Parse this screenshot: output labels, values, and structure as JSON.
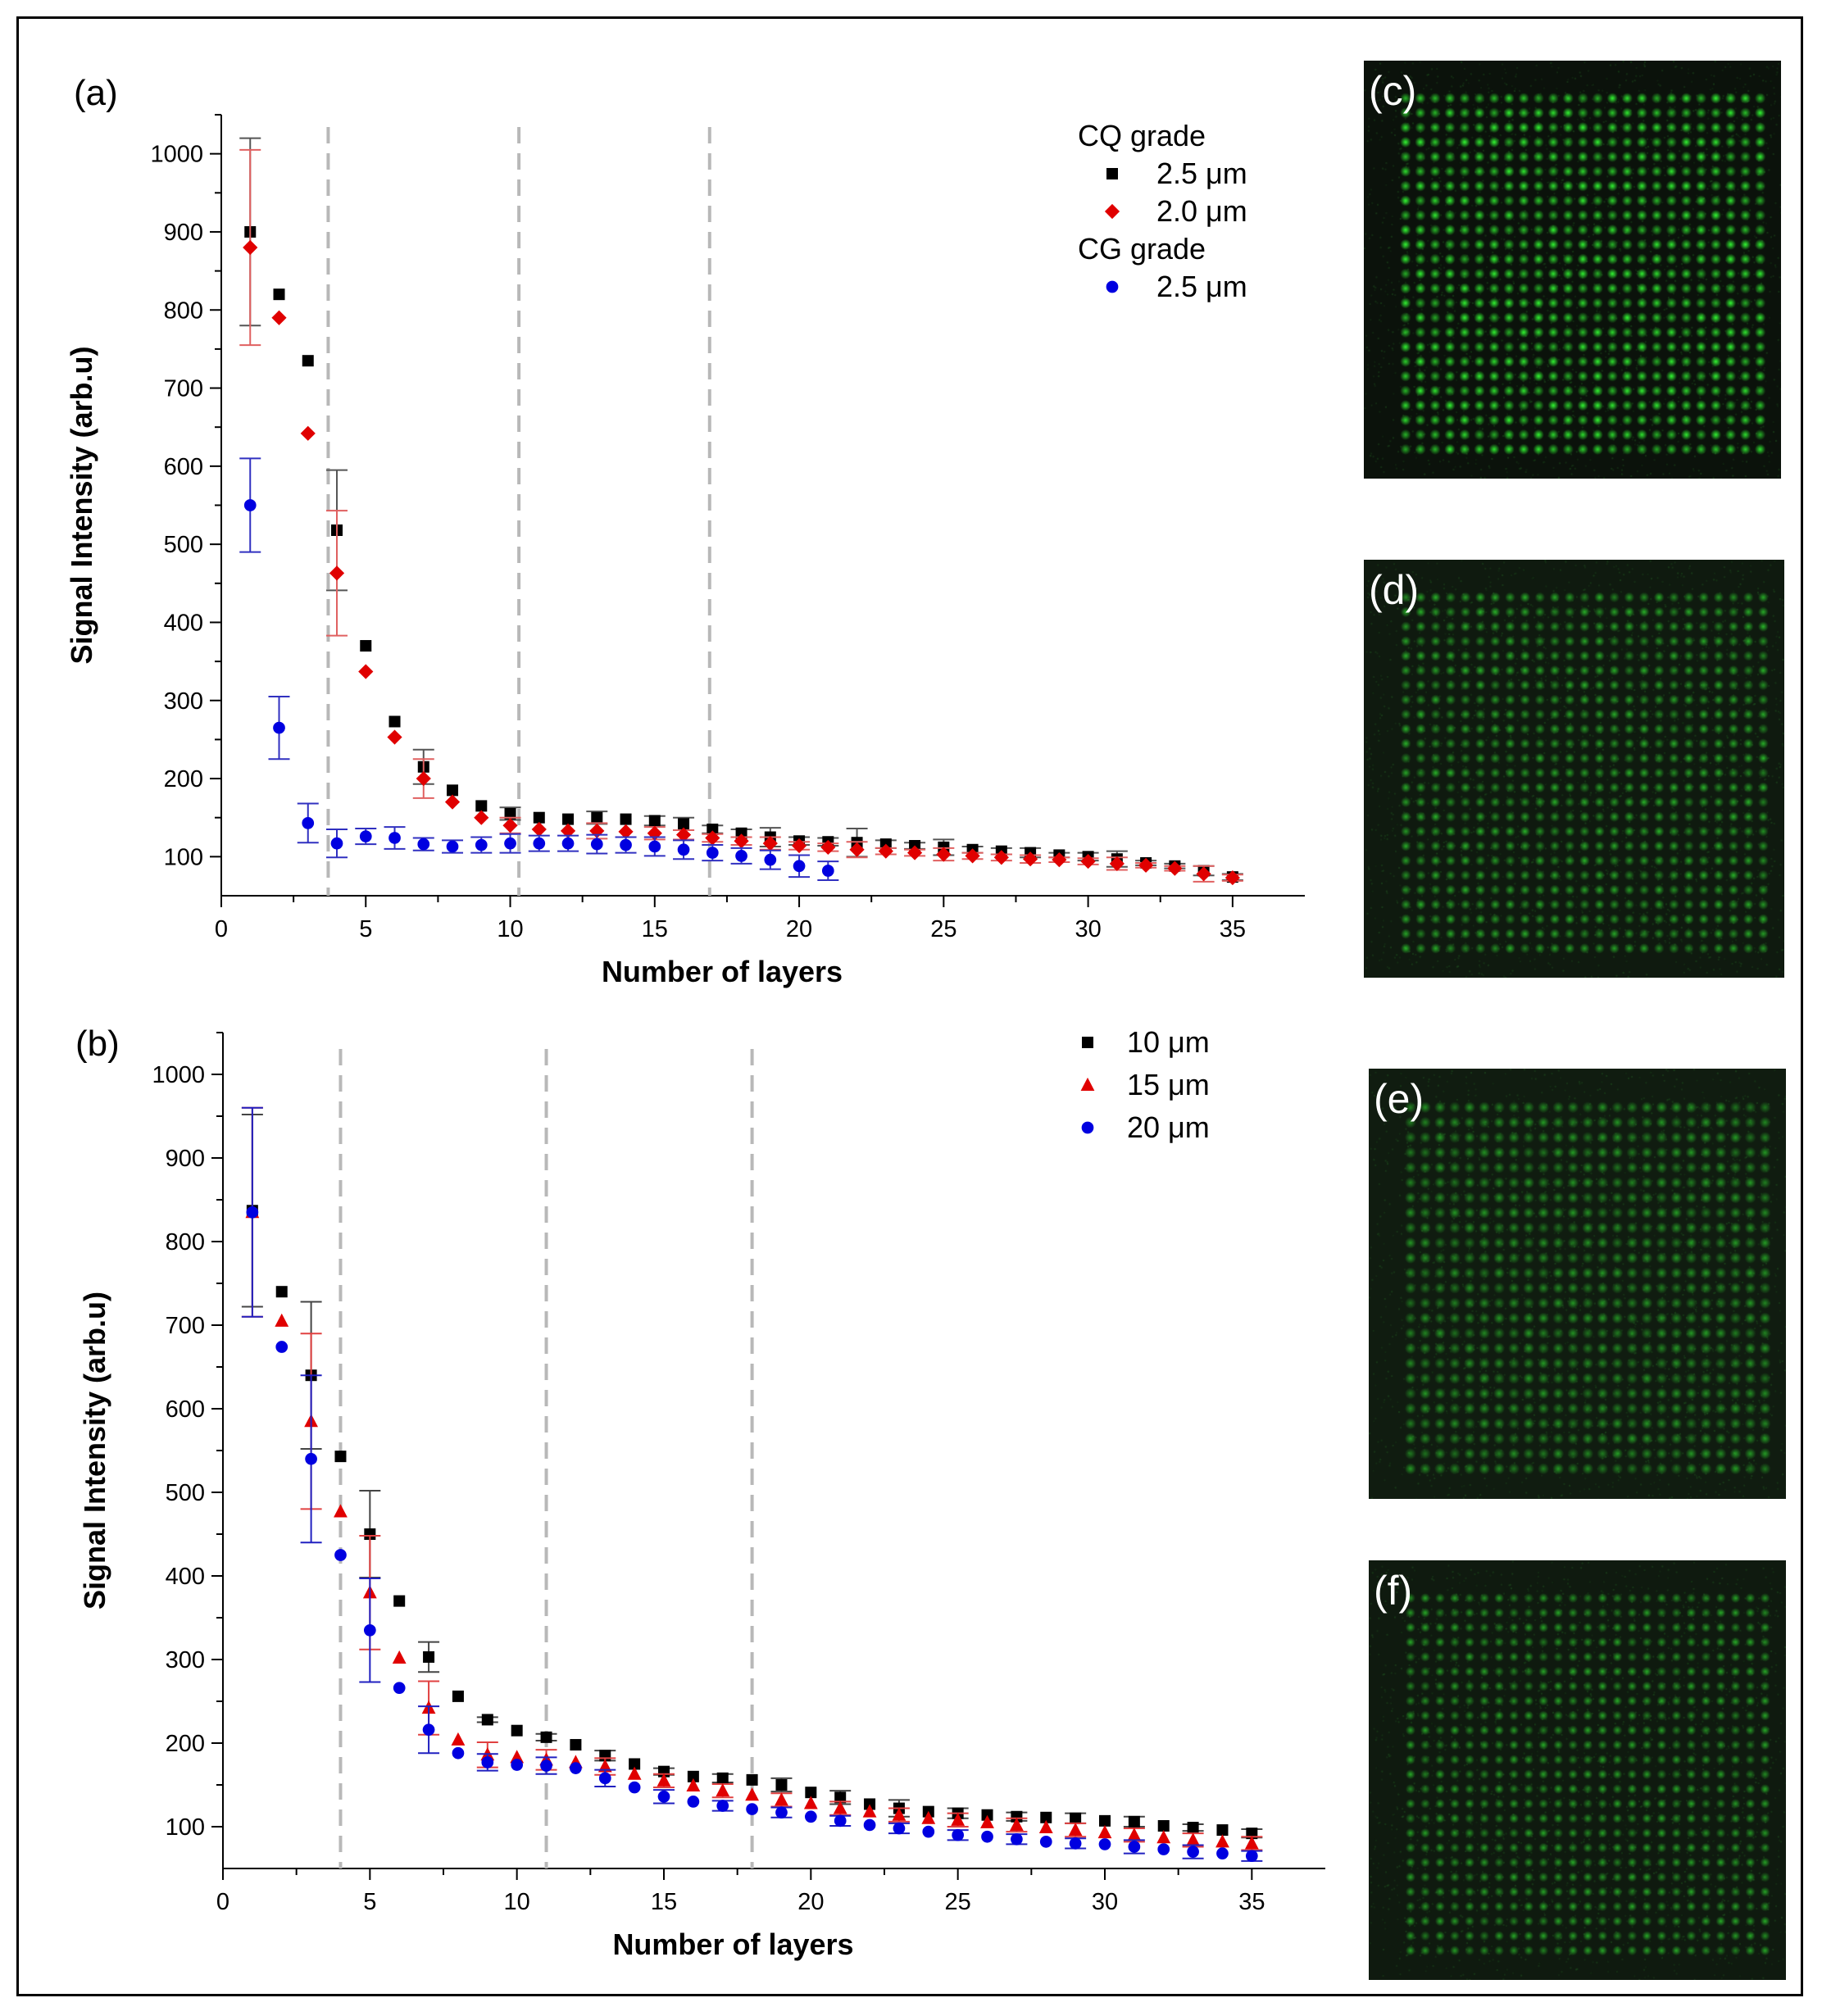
{
  "chart_data": [
    {
      "type": "scatter",
      "panel_label": "(a)",
      "xlabel": "Number of layers",
      "ylabel": "Signal Intensity (arb.u)",
      "xlim": [
        0,
        37.5
      ],
      "ylim": [
        50,
        1050
      ],
      "xticks": [
        0,
        5,
        10,
        15,
        20,
        25,
        30,
        35
      ],
      "yticks": [
        100,
        200,
        300,
        400,
        500,
        600,
        700,
        800,
        900,
        1000
      ],
      "vlines": [
        3.7,
        10.3,
        16.9
      ],
      "legend": [
        {
          "kind": "header",
          "text": "CQ grade"
        },
        {
          "kind": "series",
          "series": 0,
          "text": "2.5 μm"
        },
        {
          "kind": "series",
          "series": 1,
          "text": "2.0 μm"
        },
        {
          "kind": "header",
          "text": "CG grade"
        },
        {
          "kind": "series",
          "series": 2,
          "text": "2.5 μm"
        }
      ],
      "series": [
        {
          "name": "CQ 2.5 μm",
          "marker": "square",
          "color": "#000000",
          "errcolor": "#555555",
          "x": [
            1,
            2,
            3,
            4,
            5,
            6,
            7,
            8,
            9,
            10,
            11,
            12,
            13,
            14,
            15,
            16,
            17,
            18,
            19,
            20,
            21,
            22,
            23,
            24,
            25,
            26,
            27,
            28,
            29,
            30,
            31,
            32,
            33,
            34,
            35
          ],
          "y": [
            900,
            820,
            735,
            518,
            370,
            273,
            215,
            185,
            165,
            155,
            150,
            148,
            150,
            148,
            146,
            142,
            135,
            130,
            125,
            120,
            119,
            118,
            116,
            114,
            112,
            109,
            107,
            105,
            102,
            100,
            97,
            92,
            88,
            82,
            74
          ],
          "err": [
            120,
            0,
            0,
            77,
            0,
            0,
            22,
            0,
            0,
            8,
            0,
            0,
            8,
            0,
            6,
            8,
            5,
            5,
            12,
            5,
            5,
            18,
            5,
            4,
            10,
            4,
            4,
            6,
            3,
            5,
            10,
            3,
            3,
            6,
            4
          ]
        },
        {
          "name": "CQ 2.0 μm",
          "marker": "diamond",
          "color": "#e00000",
          "errcolor": "#e06060",
          "x": [
            1,
            2,
            3,
            4,
            5,
            6,
            7,
            8,
            9,
            10,
            11,
            12,
            13,
            14,
            15,
            16,
            17,
            18,
            19,
            20,
            21,
            22,
            23,
            24,
            25,
            26,
            27,
            28,
            29,
            30,
            31,
            32,
            33,
            34,
            35
          ],
          "y": [
            880,
            790,
            642,
            463,
            337,
            253,
            200,
            170,
            150,
            140,
            135,
            133,
            133,
            132,
            130,
            128,
            124,
            120,
            117,
            114,
            112,
            109,
            107,
            105,
            103,
            101,
            99,
            97,
            96,
            94,
            91,
            89,
            85,
            78,
            73
          ],
          "err": [
            125,
            0,
            0,
            80,
            0,
            0,
            25,
            0,
            0,
            10,
            0,
            0,
            10,
            0,
            8,
            6,
            5,
            5,
            8,
            5,
            5,
            10,
            4,
            4,
            8,
            4,
            4,
            5,
            3,
            4,
            8,
            3,
            3,
            10,
            4
          ]
        },
        {
          "name": "CG 2.5 μm",
          "marker": "circle",
          "color": "#0000e0",
          "errcolor": "#3030c0",
          "x": [
            1,
            2,
            3,
            4,
            5,
            6,
            7,
            8,
            9,
            10,
            11,
            12,
            13,
            14,
            15,
            16,
            17,
            18,
            19,
            20,
            21
          ],
          "y": [
            550,
            265,
            143,
            117,
            126,
            124,
            116,
            113,
            115,
            117,
            117,
            117,
            116,
            115,
            113,
            109,
            105,
            101,
            96,
            88,
            82
          ],
          "err": [
            60,
            40,
            25,
            18,
            10,
            14,
            8,
            8,
            10,
            12,
            10,
            10,
            12,
            10,
            12,
            12,
            10,
            10,
            12,
            14,
            12
          ]
        }
      ]
    },
    {
      "type": "scatter",
      "panel_label": "(b)",
      "xlabel": "Number of layers",
      "ylabel": "Signal Intensity (arb.u)",
      "xlim": [
        0,
        37.5
      ],
      "ylim": [
        50,
        1050
      ],
      "xticks": [
        0,
        5,
        10,
        15,
        20,
        25,
        30,
        35
      ],
      "yticks": [
        100,
        200,
        300,
        400,
        500,
        600,
        700,
        800,
        900,
        1000
      ],
      "vlines": [
        4,
        11,
        18
      ],
      "legend": [
        {
          "kind": "series",
          "series": 0,
          "text": "10 μm"
        },
        {
          "kind": "series",
          "series": 1,
          "text": "15 μm"
        },
        {
          "kind": "series",
          "series": 2,
          "text": "20 μm"
        }
      ],
      "series": [
        {
          "name": "10 μm",
          "marker": "square",
          "color": "#000000",
          "errcolor": "#444444",
          "x": [
            1,
            2,
            3,
            4,
            5,
            6,
            7,
            8,
            9,
            10,
            11,
            12,
            13,
            14,
            15,
            16,
            17,
            18,
            19,
            20,
            21,
            22,
            23,
            24,
            25,
            26,
            27,
            28,
            29,
            30,
            31,
            32,
            33,
            34,
            35
          ],
          "y": [
            837,
            740,
            640,
            543,
            450,
            370,
            303,
            256,
            228,
            215,
            207,
            198,
            185,
            175,
            166,
            160,
            158,
            156,
            150,
            141,
            135,
            127,
            122,
            118,
            116,
            114,
            112,
            111,
            110,
            107,
            106,
            101,
            99,
            96,
            92
          ],
          "err": [
            115,
            0,
            88,
            0,
            52,
            0,
            18,
            0,
            3,
            0,
            4,
            0,
            6,
            0,
            4,
            0,
            5,
            0,
            8,
            0,
            8,
            0,
            10,
            0,
            6,
            0,
            5,
            0,
            6,
            0,
            6,
            0,
            4,
            0,
            5
          ]
        },
        {
          "name": "15 μm",
          "marker": "triangle",
          "color": "#e00000",
          "errcolor": "#e04040",
          "x": [
            1,
            2,
            3,
            4,
            5,
            6,
            7,
            8,
            9,
            10,
            11,
            12,
            13,
            14,
            15,
            16,
            17,
            18,
            19,
            20,
            21,
            22,
            23,
            24,
            25,
            26,
            27,
            28,
            29,
            30,
            31,
            32,
            33,
            34,
            35
          ],
          "y": [
            835,
            705,
            585,
            477,
            380,
            302,
            242,
            204,
            186,
            183,
            180,
            177,
            172,
            163,
            155,
            149,
            143,
            138,
            132,
            128,
            122,
            118,
            114,
            110,
            108,
            105,
            102,
            99,
            96,
            93,
            90,
            87,
            84,
            82,
            80
          ],
          "err": [
            125,
            0,
            105,
            0,
            68,
            0,
            32,
            0,
            15,
            0,
            12,
            0,
            10,
            0,
            8,
            0,
            8,
            0,
            8,
            0,
            8,
            0,
            8,
            0,
            8,
            0,
            8,
            0,
            8,
            0,
            8,
            0,
            8,
            0,
            8
          ]
        },
        {
          "name": "20 μm",
          "marker": "circle",
          "color": "#0000e0",
          "errcolor": "#2020c0",
          "x": [
            1,
            2,
            3,
            4,
            5,
            6,
            7,
            8,
            9,
            10,
            11,
            12,
            13,
            14,
            15,
            16,
            17,
            18,
            19,
            20,
            21,
            22,
            23,
            24,
            25,
            26,
            27,
            28,
            29,
            30,
            31,
            32,
            33,
            34,
            35
          ],
          "y": [
            835,
            674,
            540,
            425,
            335,
            266,
            216,
            188,
            177,
            174,
            173,
            170,
            158,
            147,
            136,
            130,
            125,
            121,
            117,
            112,
            107,
            102,
            98,
            94,
            90,
            88,
            85,
            82,
            80,
            79,
            76,
            73,
            70,
            68,
            65
          ],
          "err": [
            125,
            0,
            100,
            0,
            62,
            0,
            28,
            0,
            10,
            0,
            10,
            0,
            10,
            0,
            8,
            0,
            6,
            0,
            6,
            0,
            6,
            0,
            6,
            0,
            6,
            0,
            6,
            0,
            6,
            0,
            8,
            0,
            8,
            0,
            6
          ]
        }
      ]
    }
  ],
  "micrographs": [
    {
      "label": "(c)",
      "brightness": 1.0,
      "spot_size": 1.0,
      "background": "#0b120b",
      "spot_color": "#33ff33"
    },
    {
      "label": "(d)",
      "brightness": 0.8,
      "spot_size": 0.95,
      "background": "#0f1a0f",
      "spot_color": "#30e030"
    },
    {
      "label": "(e)",
      "brightness": 0.7,
      "spot_size": 1.05,
      "background": "#101c10",
      "spot_color": "#2ed82e"
    },
    {
      "label": "(f)",
      "brightness": 0.75,
      "spot_size": 0.9,
      "background": "#0f1a0f",
      "spot_color": "#30e030"
    }
  ]
}
